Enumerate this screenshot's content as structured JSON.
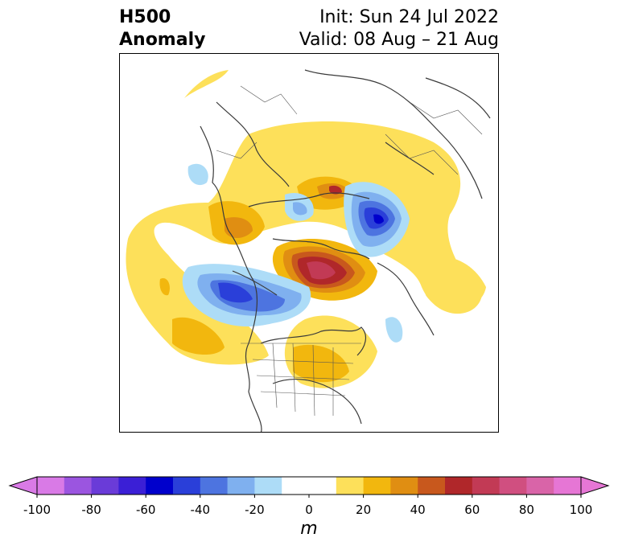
{
  "title": {
    "left_line1": "H500",
    "left_line2": "Anomaly",
    "right_line1": "Init: Sun 24 Jul 2022",
    "right_line2": "Valid: 08 Aug – 21 Aug"
  },
  "colorbar": {
    "unit": "m",
    "ticks": [
      "-100",
      "-80",
      "-60",
      "-40",
      "-20",
      "0",
      "20",
      "40",
      "60",
      "80",
      "100"
    ],
    "bins": [
      {
        "range": [
          -100,
          -90
        ],
        "color": "#d97ae6"
      },
      {
        "range": [
          -90,
          -80
        ],
        "color": "#9b55e0"
      },
      {
        "range": [
          -80,
          -70
        ],
        "color": "#6a3bd8"
      },
      {
        "range": [
          -70,
          -60
        ],
        "color": "#3b1fd6"
      },
      {
        "range": [
          -60,
          -50
        ],
        "color": "#0000cc"
      },
      {
        "range": [
          -50,
          -40
        ],
        "color": "#2a3fd9"
      },
      {
        "range": [
          -40,
          -30
        ],
        "color": "#4d74e0"
      },
      {
        "range": [
          -30,
          -20
        ],
        "color": "#7fb0ef"
      },
      {
        "range": [
          -20,
          -10
        ],
        "color": "#addcf7"
      },
      {
        "range": [
          -10,
          10
        ],
        "color": "#ffffff"
      },
      {
        "range": [
          10,
          20
        ],
        "color": "#fde05a"
      },
      {
        "range": [
          20,
          30
        ],
        "color": "#f2b70e"
      },
      {
        "range": [
          30,
          40
        ],
        "color": "#e08e12"
      },
      {
        "range": [
          40,
          50
        ],
        "color": "#c8581d"
      },
      {
        "range": [
          50,
          60
        ],
        "color": "#b0272a"
      },
      {
        "range": [
          60,
          70
        ],
        "color": "#c23a55"
      },
      {
        "range": [
          70,
          80
        ],
        "color": "#d04f80"
      },
      {
        "range": [
          80,
          90
        ],
        "color": "#d964a8"
      },
      {
        "range": [
          90,
          100
        ],
        "color": "#e676d5"
      }
    ],
    "extend_low_color": "#d97ae6",
    "extend_high_color": "#e676d5"
  }
}
